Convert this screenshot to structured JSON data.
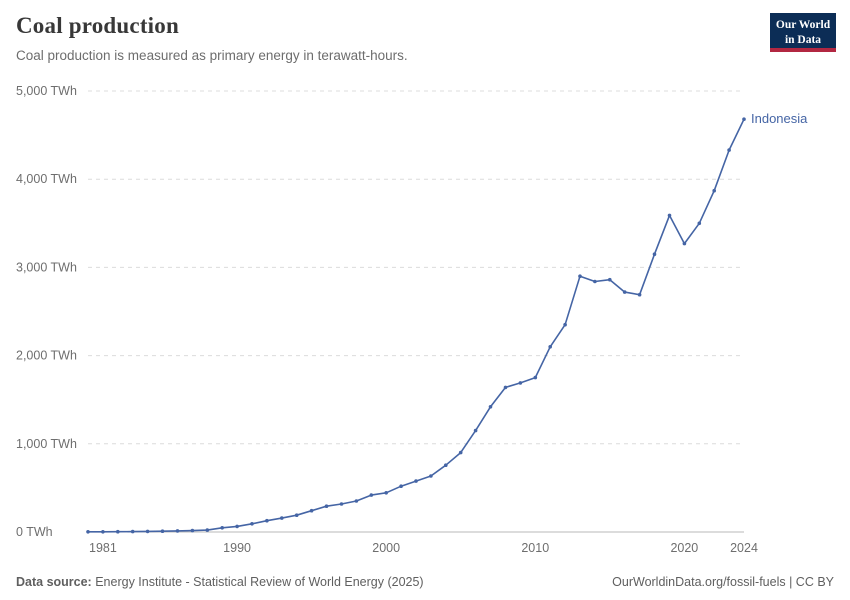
{
  "header": {
    "title": "Coal production",
    "subtitle": "Coal production is measured as primary energy in terawatt-hours.",
    "logo": {
      "line1": "Our World",
      "line2": "in Data"
    }
  },
  "footer": {
    "source_label": "Data source:",
    "source_text": " Energy Institute - Statistical Review of World Energy (2025)",
    "credit": "OurWorldinData.org/fossil-fuels | CC BY"
  },
  "colors": {
    "series": "#4565a5",
    "grid": "#dcdcdc",
    "axis": "#b8b8b8",
    "tick_text": "#6e6e6e",
    "title_text": "#383838",
    "subtitle_text": "#6d6d6d",
    "logo_bg": "#0c2d56",
    "logo_stripe": "#b22741"
  },
  "chart_data": {
    "type": "line",
    "title": "Coal production",
    "subtitle": "Coal production is measured as primary energy in terawatt-hours.",
    "unit": "TWh",
    "grid": true,
    "legend_position": "end-of-line",
    "xlim": [
      1980,
      2024
    ],
    "ylim": [
      0,
      5000
    ],
    "xticks": [
      1981,
      1990,
      2000,
      2010,
      2020,
      2024
    ],
    "yticks": [
      {
        "value": 0,
        "label": "0 TWh"
      },
      {
        "value": 1000,
        "label": "1,000 TWh"
      },
      {
        "value": 2000,
        "label": "2,000 TWh"
      },
      {
        "value": 3000,
        "label": "3,000 TWh"
      },
      {
        "value": 4000,
        "label": "4,000 TWh"
      },
      {
        "value": 5000,
        "label": "5,000 TWh"
      }
    ],
    "x": [
      1980,
      1981,
      1982,
      1983,
      1984,
      1985,
      1986,
      1987,
      1988,
      1989,
      1990,
      1991,
      1992,
      1993,
      1994,
      1995,
      1996,
      1997,
      1998,
      1999,
      2000,
      2001,
      2002,
      2003,
      2004,
      2005,
      2006,
      2007,
      2008,
      2009,
      2010,
      2011,
      2012,
      2013,
      2014,
      2015,
      2016,
      2017,
      2018,
      2019,
      2020,
      2021,
      2022,
      2023,
      2024
    ],
    "series": [
      {
        "name": "Indonesia",
        "color": "#4565a5",
        "values": [
          2,
          2,
          3,
          4,
          7,
          9,
          13,
          16,
          22,
          48,
          64,
          93,
          128,
          158,
          190,
          242,
          293,
          318,
          352,
          418,
          445,
          519,
          577,
          635,
          757,
          900,
          1150,
          1420,
          1640,
          1690,
          1750,
          2100,
          2350,
          2900,
          2840,
          2860,
          2720,
          2690,
          3150,
          3590,
          3270,
          3500,
          3870,
          4330,
          4680
        ]
      }
    ]
  }
}
